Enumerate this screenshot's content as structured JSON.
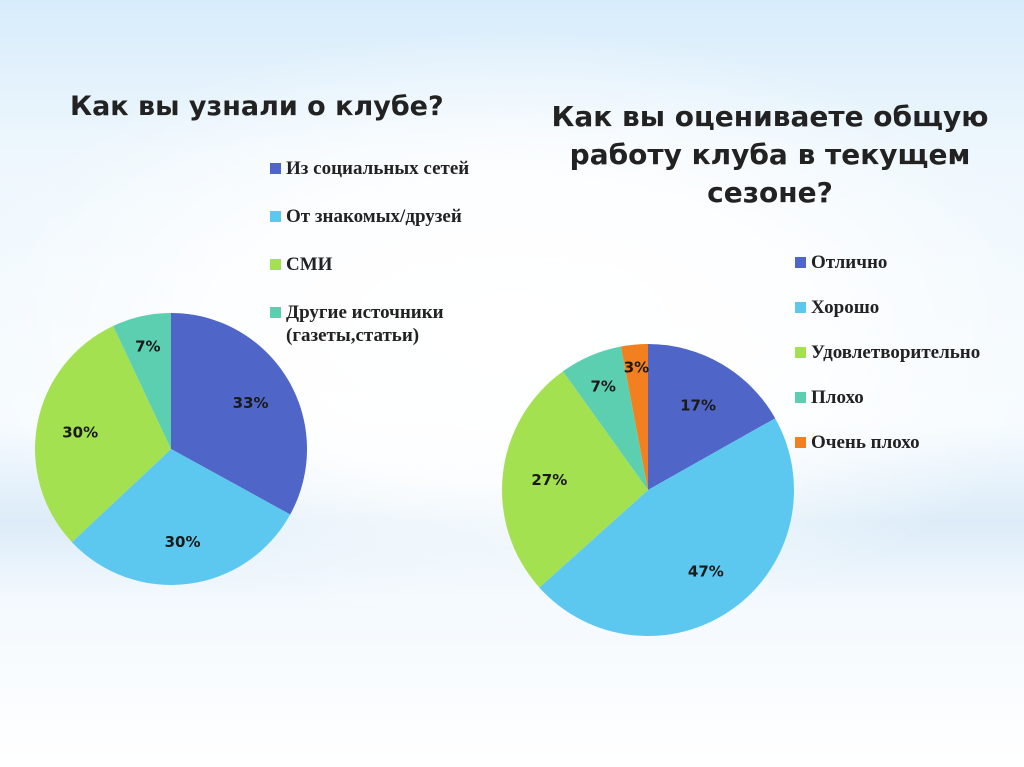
{
  "chart_data": [
    {
      "type": "pie",
      "title": "Как вы узнали о клубе?",
      "categories": [
        "Из социальных сетей",
        "От знакомых/друзей",
        "СМИ",
        "Другие источники (газеты,статьи)"
      ],
      "values": [
        33,
        30,
        30,
        7
      ],
      "labels": [
        "33%",
        "30%",
        "30%",
        "7%"
      ],
      "colors": [
        "#4f66c8",
        "#5cc8f0",
        "#a4e150",
        "#5dcfb1"
      ],
      "legend": "right"
    },
    {
      "type": "pie",
      "title": "Как вы оцениваете общую работу клуба в текущем сезоне?",
      "categories": [
        "Отлично",
        "Хорошо",
        "Удовлетворительно",
        "Плохо",
        "Очень плохо"
      ],
      "values": [
        17,
        47,
        27,
        7,
        3
      ],
      "labels": [
        "17%",
        "47%",
        "27%",
        "7%",
        "3%"
      ],
      "colors": [
        "#4f66c8",
        "#5cc8f0",
        "#a4e150",
        "#5dcfb1",
        "#f2801f"
      ],
      "legend": "right"
    }
  ]
}
